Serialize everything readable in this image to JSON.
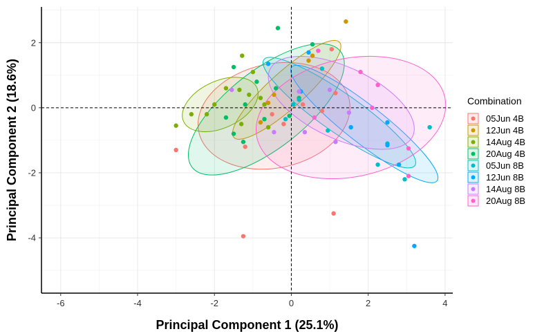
{
  "chart_data": {
    "type": "scatter",
    "xlabel": "Principal Component 1 (25.1%)",
    "ylabel": "Principal Component 2 (18.6%)",
    "xlim": [
      -6.5,
      4.2
    ],
    "ylim": [
      -5.7,
      3.1
    ],
    "xticks": [
      -6,
      -4,
      -2,
      0,
      2,
      4
    ],
    "yticks": [
      -4,
      -2,
      0,
      2
    ],
    "xtick_labels": [
      "-6",
      "-4",
      "-2",
      "0",
      "2",
      "4"
    ],
    "ytick_labels": [
      "-4",
      "-2",
      "0",
      "2"
    ],
    "reference_lines": {
      "x": 0,
      "y": 0,
      "style": "dashed"
    },
    "grid": true,
    "legend": {
      "title": "Combination",
      "placement": "right"
    },
    "series": [
      {
        "name": "05Jun 4B",
        "color": "#F8766D",
        "points": [
          [
            -3.0,
            -1.3
          ],
          [
            1.1,
            -3.25
          ],
          [
            -1.25,
            -3.95
          ],
          [
            1.05,
            1.8
          ],
          [
            1.15,
            0.45
          ],
          [
            0.8,
            -0.1
          ],
          [
            -0.2,
            -0.5
          ],
          [
            -0.5,
            -0.2
          ],
          [
            -1.2,
            -1.2
          ],
          [
            0.3,
            0.1
          ]
        ],
        "ellipse": {
          "center": [
            -0.45,
            -0.25
          ],
          "radii": [
            2.0,
            1.6
          ],
          "angle_deg": 12
        }
      },
      {
        "name": "12Jun 4B",
        "color": "#CD9600",
        "points": [
          [
            1.42,
            2.65
          ],
          [
            0.55,
            1.6
          ],
          [
            0.45,
            1.45
          ],
          [
            -0.45,
            0.4
          ],
          [
            -0.8,
            -0.45
          ],
          [
            -0.6,
            0.15
          ]
        ],
        "ellipse": {
          "center": [
            -0.12,
            0.55
          ],
          "radii": [
            1.85,
            0.55
          ],
          "angle_deg": 42
        }
      },
      {
        "name": "14Aug 4B",
        "color": "#7CAE00",
        "points": [
          [
            -1.28,
            1.6
          ],
          [
            -1.0,
            1.1
          ],
          [
            -1.35,
            0.55
          ],
          [
            -1.7,
            0.6
          ],
          [
            -2.0,
            0.1
          ],
          [
            -2.6,
            -0.2
          ],
          [
            -3.0,
            -0.55
          ],
          [
            -2.2,
            -0.2
          ],
          [
            -1.3,
            -0.5
          ],
          [
            -0.6,
            -0.6
          ],
          [
            -0.7,
            0.1
          ],
          [
            -1.1,
            0.4
          ],
          [
            -0.8,
            0.3
          ]
        ],
        "ellipse": {
          "center": [
            -1.85,
            0.1
          ],
          "radii": [
            1.05,
            0.72
          ],
          "angle_deg": 25
        }
      },
      {
        "name": "20Aug 4B",
        "color": "#00BE67",
        "points": [
          [
            -0.35,
            2.45
          ],
          [
            0.55,
            1.95
          ],
          [
            -1.5,
            1.25
          ],
          [
            -0.9,
            0.8
          ],
          [
            -1.2,
            0.1
          ],
          [
            -1.7,
            -0.3
          ],
          [
            -1.5,
            -0.8
          ],
          [
            -1.25,
            -1.05
          ],
          [
            -0.4,
            0.6
          ],
          [
            0.2,
            0.3
          ],
          [
            -0.05,
            -0.25
          ],
          [
            -0.7,
            -0.35
          ]
        ],
        "ellipse": {
          "center": [
            -0.65,
            -0.05
          ],
          "radii": [
            2.45,
            1.2
          ],
          "angle_deg": 38
        }
      },
      {
        "name": "05Jun 8B",
        "color": "#00BFC4",
        "points": [
          [
            3.6,
            -0.6
          ],
          [
            2.95,
            -2.2
          ],
          [
            2.25,
            -1.75
          ],
          [
            2.5,
            -1.1
          ],
          [
            0.95,
            -0.7
          ],
          [
            0.8,
            1.2
          ],
          [
            0.2,
            0.25
          ],
          [
            -0.15,
            -0.35
          ],
          [
            0.05,
            0.1
          ]
        ],
        "ellipse": {
          "center": [
            1.25,
            -0.15
          ],
          "radii": [
            2.4,
            0.6
          ],
          "angle_deg": -35
        }
      },
      {
        "name": "12Jun 8B",
        "color": "#00A9FF",
        "points": [
          [
            3.2,
            -4.25
          ],
          [
            2.8,
            -1.75
          ],
          [
            2.5,
            -0.45
          ],
          [
            2.5,
            -1.15
          ],
          [
            1.55,
            -0.6
          ],
          [
            0.45,
            1.7
          ],
          [
            0.25,
            0.5
          ],
          [
            -0.6,
            1.35
          ]
        ],
        "ellipse": {
          "center": [
            1.9,
            -0.5
          ],
          "radii": [
            2.4,
            0.58
          ],
          "angle_deg": -38
        }
      },
      {
        "name": "14Aug 8B",
        "color": "#C77CFF",
        "points": [
          [
            1.0,
            0.55
          ],
          [
            1.5,
            -0.15
          ],
          [
            1.15,
            -1.05
          ],
          [
            0.35,
            -0.75
          ],
          [
            -0.45,
            -0.75
          ],
          [
            -1.55,
            0.55
          ],
          [
            0.2,
            0.5
          ]
        ],
        "ellipse": {
          "center": [
            1.3,
            0.15
          ],
          "radii": [
            2.05,
            1.1
          ],
          "angle_deg": -25
        }
      },
      {
        "name": "20Aug 8B",
        "color": "#FF61CC",
        "points": [
          [
            1.8,
            1.1
          ],
          [
            2.25,
            0.7
          ],
          [
            2.1,
            0.0
          ],
          [
            3.05,
            -1.25
          ],
          [
            3.05,
            -2.1
          ],
          [
            0.7,
            1.75
          ],
          [
            0.6,
            -0.3
          ]
        ],
        "ellipse": {
          "center": [
            1.55,
            -0.3
          ],
          "radii": [
            2.5,
            1.82
          ],
          "angle_deg": 12
        }
      }
    ]
  }
}
